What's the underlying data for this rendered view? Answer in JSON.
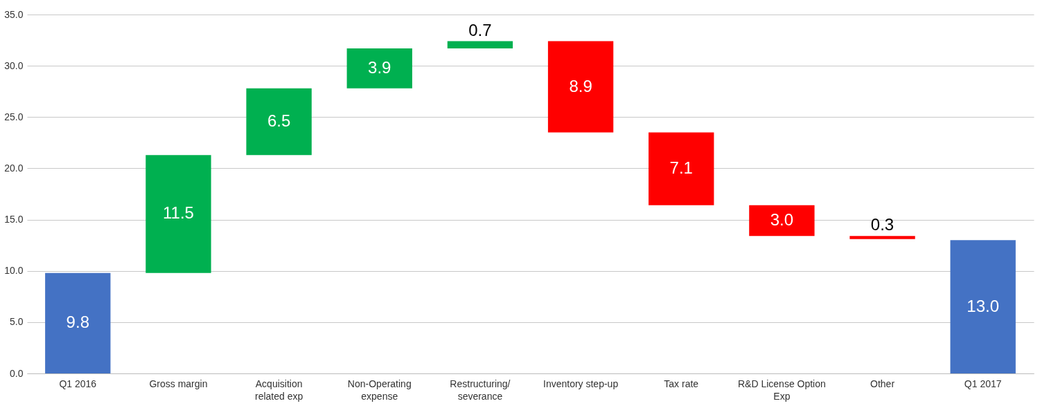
{
  "chart_data": {
    "type": "bar",
    "categories": [
      "Q1 2016",
      "Gross margin",
      "Acquisition related exp",
      "Non-Operating expense",
      "Restructuring/ severance",
      "Inventory step-up",
      "Tax rate",
      "R&D License Option Exp",
      "Other",
      "Q1 2017"
    ],
    "base": [
      0,
      9.8,
      21.3,
      27.8,
      31.7,
      23.5,
      16.4,
      13.4,
      13.1,
      0
    ],
    "values": [
      9.8,
      11.5,
      6.5,
      3.9,
      0.7,
      8.9,
      7.1,
      3.0,
      0.3,
      13.0
    ],
    "colors": [
      "#4472c4",
      "#00b050",
      "#00b050",
      "#00b050",
      "#00b050",
      "#ff0000",
      "#ff0000",
      "#ff0000",
      "#ff0000",
      "#4472c4"
    ],
    "value_labels": [
      "9.8",
      "11.5",
      "6.5",
      "3.9",
      "0.7",
      "8.9",
      "7.1",
      "3.0",
      "0.3",
      "13.0"
    ],
    "ylim": [
      0,
      35
    ],
    "yticks": [
      {
        "value": 0,
        "label": "0.0"
      },
      {
        "value": 5,
        "label": "5.0"
      },
      {
        "value": 10,
        "label": "10.0"
      },
      {
        "value": 15,
        "label": "15.0"
      },
      {
        "value": 20,
        "label": "20.0"
      },
      {
        "value": 25,
        "label": "25.0"
      },
      {
        "value": 30,
        "label": "30.0"
      },
      {
        "value": 35,
        "label": "35.0"
      }
    ],
    "grid": "y"
  }
}
